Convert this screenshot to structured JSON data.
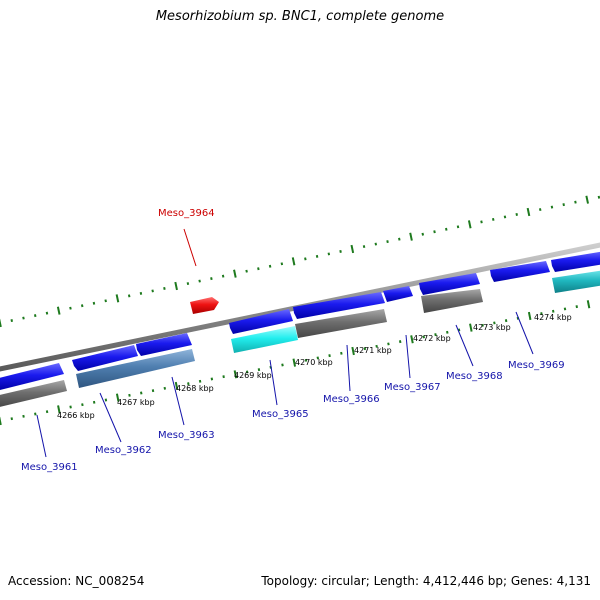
{
  "title": "Mesorhizobium sp. BNC1, complete genome",
  "footer": {
    "accession": "Accession: NC_008254",
    "summary": "Topology: circular; Length: 4,412,446 bp; Genes: 4,131"
  },
  "scale_labels": [
    "4266 kbp",
    "4267 kbp",
    "4268 kbp",
    "4269 kbp",
    "4270 kbp",
    "4271 kbp",
    "4272 kbp",
    "4273 kbp",
    "4274 kbp"
  ],
  "genes": [
    {
      "name": "Meso_3961",
      "color": "#1414aa"
    },
    {
      "name": "Meso_3962",
      "color": "#1414aa"
    },
    {
      "name": "Meso_3963",
      "color": "#1414aa"
    },
    {
      "name": "Meso_3964",
      "color": "#cc0000"
    },
    {
      "name": "Meso_3965",
      "color": "#1414aa"
    },
    {
      "name": "Meso_3966",
      "color": "#1414aa"
    },
    {
      "name": "Meso_3967",
      "color": "#1414aa"
    },
    {
      "name": "Meso_3968",
      "color": "#1414aa"
    },
    {
      "name": "Meso_3969",
      "color": "#1414aa"
    }
  ],
  "colors": {
    "cds": "#1a1aee",
    "rna": "#ee1111",
    "gray_feature": "#6e6e6e",
    "steel_feature": "#4f7fb0",
    "cyan_feature": "#22dddd",
    "teal_feature": "#20b8c0",
    "backbone": "#8c8c8c",
    "tick": "#1e7a1e"
  }
}
